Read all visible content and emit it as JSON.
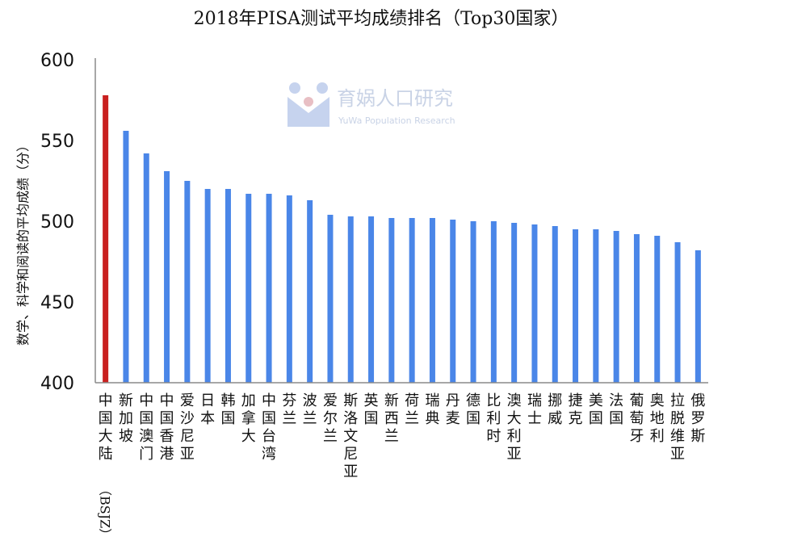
{
  "chart_data": {
    "type": "bar",
    "title": "2018年PISA测试平均成绩排名（Top30国家）",
    "ylabel": "数学、科学和阅读的平均成绩（分）",
    "xlabel": "",
    "ylim": [
      400,
      600
    ],
    "yticks": [
      400,
      450,
      500,
      550,
      600
    ],
    "grid": false,
    "legend": "none",
    "categories": [
      "中国大陆（BSJZ）",
      "新加坡",
      "中国澳门",
      "中国香港",
      "爱沙尼亚",
      "日本",
      "韩国",
      "加拿大",
      "中国台湾",
      "芬兰",
      "波兰",
      "爱尔兰",
      "斯洛文尼亚",
      "英国",
      "新西兰",
      "荷兰",
      "瑞典",
      "丹麦",
      "德国",
      "比利时",
      "澳大利亚",
      "瑞士",
      "挪威",
      "捷克",
      "美国",
      "法国",
      "葡萄牙",
      "奥地利",
      "拉脱维亚",
      "俄罗斯"
    ],
    "values": [
      578,
      556,
      542,
      531,
      525,
      520,
      520,
      517,
      517,
      516,
      513,
      504,
      503,
      503,
      502,
      502,
      502,
      501,
      500,
      500,
      499,
      498,
      497,
      495,
      495,
      494,
      492,
      491,
      487,
      482
    ],
    "colors": {
      "highlight": "#c9201f",
      "bar": "#4a86e8",
      "axis": "#8a8a8a"
    },
    "watermark": {
      "text": "育娲人口研究",
      "subtext": "YuWa Population Research",
      "icon": "yuwa-logo-icon"
    }
  }
}
